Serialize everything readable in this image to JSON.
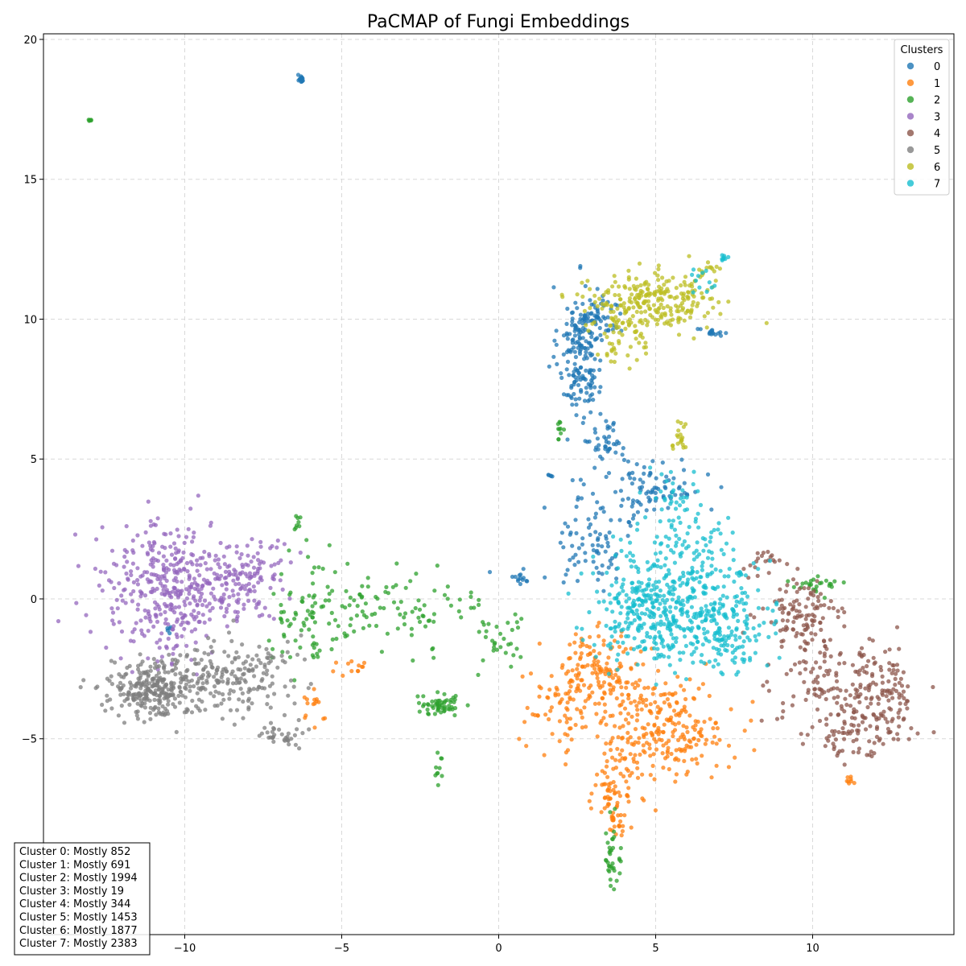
{
  "chart_data": {
    "type": "scatter",
    "title": "PaCMAP of Fungi Embeddings",
    "xlabel": "",
    "ylabel": "",
    "xlim": [
      -14.5,
      14.5
    ],
    "ylim": [
      -12.0,
      20.2
    ],
    "x_ticks": [
      -10,
      -5,
      0,
      5,
      10
    ],
    "x_tick_labels": [
      "−10",
      "−5",
      "0",
      "5",
      "10"
    ],
    "y_ticks": [
      -5,
      0,
      5,
      10,
      15,
      20
    ],
    "y_tick_labels": [
      "−5",
      "0",
      "5",
      "10",
      "15",
      "20"
    ],
    "grid": true,
    "legend": {
      "title": "Clusters",
      "placement": "top-right",
      "entries": [
        "0",
        "1",
        "2",
        "3",
        "4",
        "5",
        "6",
        "7"
      ]
    },
    "colors": [
      "#1f77b4",
      "#ff7f0e",
      "#2ca02c",
      "#9467bd",
      "#8c564b",
      "#7f7f7f",
      "#bcbd22",
      "#17becf"
    ],
    "series": [
      {
        "name": "0",
        "clouds": [
          {
            "cx": 2.6,
            "cy": 8.8,
            "sx": 0.35,
            "sy": 1.2,
            "n": 180
          },
          {
            "cx": 3.2,
            "cy": 10.0,
            "sx": 0.4,
            "sy": 0.4,
            "n": 50
          },
          {
            "cx": 3.5,
            "cy": 5.6,
            "sx": 0.3,
            "sy": 0.4,
            "n": 40
          },
          {
            "cx": 4.8,
            "cy": 3.8,
            "sx": 0.9,
            "sy": 0.6,
            "n": 90
          },
          {
            "cx": 3.0,
            "cy": 2.0,
            "sx": 0.6,
            "sy": 0.8,
            "n": 70
          },
          {
            "cx": 6.8,
            "cy": 9.5,
            "sx": 0.25,
            "sy": 0.08,
            "n": 15
          },
          {
            "cx": 0.8,
            "cy": 0.8,
            "sx": 0.4,
            "sy": 0.15,
            "n": 15
          },
          {
            "cx": -6.3,
            "cy": 18.6,
            "sx": 0.06,
            "sy": 0.06,
            "n": 15
          },
          {
            "cx": -10.5,
            "cy": -1.0,
            "sx": 0.05,
            "sy": 0.2,
            "n": 5
          },
          {
            "cx": 1.7,
            "cy": 4.4,
            "sx": 0.05,
            "sy": 0.05,
            "n": 5
          }
        ]
      },
      {
        "name": "1",
        "clouds": [
          {
            "cx": 5.2,
            "cy": -4.6,
            "sx": 1.0,
            "sy": 0.9,
            "n": 260
          },
          {
            "cx": 3.3,
            "cy": -2.4,
            "sx": 0.7,
            "sy": 0.6,
            "n": 110
          },
          {
            "cx": 2.2,
            "cy": -3.8,
            "sx": 0.7,
            "sy": 0.9,
            "n": 90
          },
          {
            "cx": 3.6,
            "cy": -6.8,
            "sx": 0.35,
            "sy": 0.6,
            "n": 60
          },
          {
            "cx": 3.7,
            "cy": -8.0,
            "sx": 0.12,
            "sy": 0.3,
            "n": 20
          },
          {
            "cx": -4.7,
            "cy": -2.5,
            "sx": 0.4,
            "sy": 0.2,
            "n": 12
          },
          {
            "cx": -5.9,
            "cy": -4.0,
            "sx": 0.3,
            "sy": 0.4,
            "n": 15
          },
          {
            "cx": 11.2,
            "cy": -6.5,
            "sx": 0.06,
            "sy": 0.15,
            "n": 8
          }
        ]
      },
      {
        "name": "2",
        "clouds": [
          {
            "cx": -3.6,
            "cy": -0.3,
            "sx": 1.5,
            "sy": 0.7,
            "n": 110
          },
          {
            "cx": -6.0,
            "cy": -0.5,
            "sx": 0.6,
            "sy": 1.0,
            "n": 60
          },
          {
            "cx": -1.9,
            "cy": -3.8,
            "sx": 0.35,
            "sy": 0.2,
            "n": 55
          },
          {
            "cx": 0.2,
            "cy": -1.5,
            "sx": 0.5,
            "sy": 0.6,
            "n": 30
          },
          {
            "cx": -1.9,
            "cy": -5.9,
            "sx": 0.06,
            "sy": 0.25,
            "n": 10
          },
          {
            "cx": 3.6,
            "cy": -9.5,
            "sx": 0.15,
            "sy": 0.6,
            "n": 35
          },
          {
            "cx": 10.1,
            "cy": 0.5,
            "sx": 0.5,
            "sy": 0.15,
            "n": 25
          },
          {
            "cx": -13.0,
            "cy": 17.1,
            "sx": 0.03,
            "sy": 0.03,
            "n": 6
          },
          {
            "cx": -6.4,
            "cy": 2.7,
            "sx": 0.05,
            "sy": 0.15,
            "n": 8
          },
          {
            "cx": 1.9,
            "cy": 6.0,
            "sx": 0.1,
            "sy": 0.2,
            "n": 10
          }
        ]
      },
      {
        "name": "3",
        "clouds": [
          {
            "cx": -10.5,
            "cy": 0.4,
            "sx": 1.1,
            "sy": 1.2,
            "n": 380
          },
          {
            "cx": -8.3,
            "cy": 0.4,
            "sx": 0.7,
            "sy": 0.7,
            "n": 110
          },
          {
            "cx": -7.2,
            "cy": 1.6,
            "sx": 0.5,
            "sy": 0.4,
            "n": 20
          }
        ]
      },
      {
        "name": "4",
        "clouds": [
          {
            "cx": 12.0,
            "cy": -3.6,
            "sx": 0.7,
            "sy": 1.0,
            "n": 160
          },
          {
            "cx": 9.6,
            "cy": -0.6,
            "sx": 0.6,
            "sy": 0.6,
            "n": 110
          },
          {
            "cx": 10.4,
            "cy": -3.2,
            "sx": 0.8,
            "sy": 0.9,
            "n": 90
          },
          {
            "cx": 11.3,
            "cy": -5.0,
            "sx": 0.4,
            "sy": 0.5,
            "n": 35
          },
          {
            "cx": 8.5,
            "cy": 1.4,
            "sx": 0.3,
            "sy": 0.3,
            "n": 20
          }
        ]
      },
      {
        "name": "5",
        "clouds": [
          {
            "cx": -11.0,
            "cy": -3.2,
            "sx": 0.7,
            "sy": 0.5,
            "n": 280
          },
          {
            "cx": -8.6,
            "cy": -2.7,
            "sx": 1.0,
            "sy": 0.7,
            "n": 190
          },
          {
            "cx": -6.8,
            "cy": -4.8,
            "sx": 0.35,
            "sy": 0.25,
            "n": 35
          }
        ]
      },
      {
        "name": "6",
        "clouds": [
          {
            "cx": 4.8,
            "cy": 10.6,
            "sx": 1.0,
            "sy": 0.55,
            "n": 260
          },
          {
            "cx": 4.0,
            "cy": 9.2,
            "sx": 0.5,
            "sy": 0.4,
            "n": 40
          },
          {
            "cx": 5.7,
            "cy": 5.8,
            "sx": 0.15,
            "sy": 0.3,
            "n": 20
          },
          {
            "cx": 6.7,
            "cy": 11.8,
            "sx": 0.2,
            "sy": 0.1,
            "n": 10
          }
        ]
      },
      {
        "name": "7",
        "clouds": [
          {
            "cx": 6.0,
            "cy": 0.0,
            "sx": 1.2,
            "sy": 1.1,
            "n": 380
          },
          {
            "cx": 4.5,
            "cy": -0.5,
            "sx": 0.8,
            "sy": 0.8,
            "n": 150
          },
          {
            "cx": 7.5,
            "cy": -1.2,
            "sx": 0.6,
            "sy": 0.6,
            "n": 90
          },
          {
            "cx": 5.8,
            "cy": 3.0,
            "sx": 0.6,
            "sy": 0.8,
            "n": 60
          },
          {
            "cx": 7.2,
            "cy": 12.2,
            "sx": 0.1,
            "sy": 0.06,
            "n": 8
          },
          {
            "cx": 6.5,
            "cy": 11.5,
            "sx": 0.2,
            "sy": 0.2,
            "n": 12
          }
        ]
      }
    ],
    "annotations": [
      "Cluster 0: Mostly 852",
      "Cluster 1: Mostly 691",
      "Cluster 2: Mostly 1994",
      "Cluster 3: Mostly 19",
      "Cluster 4: Mostly 344",
      "Cluster 5: Mostly 1453",
      "Cluster 6: Mostly 1877",
      "Cluster 7: Mostly 2383"
    ]
  }
}
